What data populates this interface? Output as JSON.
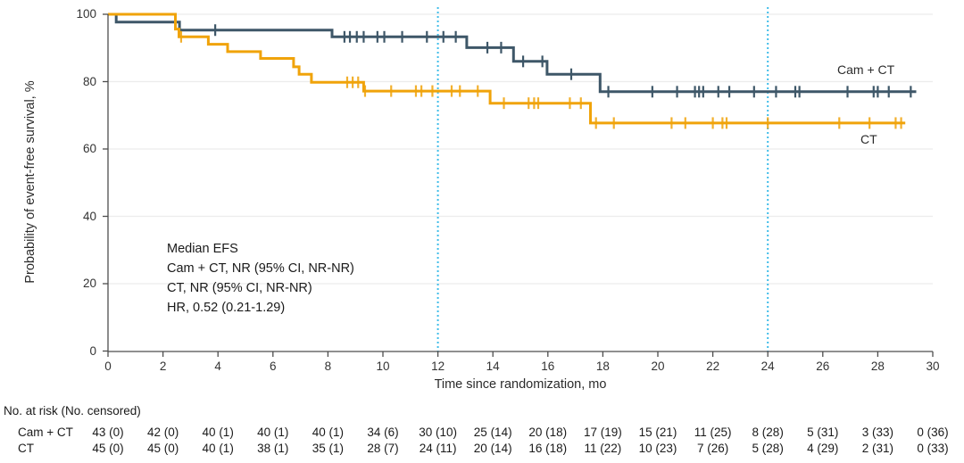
{
  "figure": {
    "yaxis": {
      "title": "Probability of event-free survival, %",
      "ticks": [
        0,
        20,
        40,
        60,
        80,
        100
      ],
      "range": [
        0,
        100
      ]
    },
    "xaxis": {
      "title": "Time since randomization, mo",
      "ticks": [
        0,
        2,
        4,
        6,
        8,
        10,
        12,
        14,
        16,
        18,
        20,
        22,
        24,
        26,
        28,
        30
      ],
      "range": [
        0,
        30
      ]
    },
    "annotation": {
      "lines": [
        "Median EFS",
        "Cam + CT, NR (95% CI, NR-NR)",
        "CT, NR (95% CI, NR-NR)",
        "HR, 0.52 (0.21-1.29)"
      ]
    },
    "reference_lines": {
      "x": [
        12,
        24
      ],
      "color": "#41bde9"
    },
    "colors": {
      "cam_ct": "#3e5768",
      "ct": "#f0a30a",
      "grid": "#ececec",
      "axis": "#4d4d4d"
    }
  },
  "chart_data": {
    "type": "line",
    "subtype": "kaplan-meier-step",
    "title": "",
    "xlabel": "Time since randomization, mo",
    "ylabel": "Probability of event-free survival, %",
    "xlim": [
      0,
      30
    ],
    "ylim": [
      0,
      100
    ],
    "grid": "horizontal",
    "legend_position": "right-inline",
    "series": [
      {
        "name": "Cam + CT",
        "color": "#3e5768",
        "censor_opacity": 1,
        "steps": [
          [
            0,
            100
          ],
          [
            0.3,
            100
          ],
          [
            0.3,
            97.7
          ],
          [
            2.6,
            97.7
          ],
          [
            2.6,
            95.3
          ],
          [
            8.15,
            95.3
          ],
          [
            8.15,
            93.3
          ],
          [
            13.05,
            93.3
          ],
          [
            13.05,
            90.1
          ],
          [
            14.75,
            90.1
          ],
          [
            14.75,
            86.0
          ],
          [
            15.97,
            86.0
          ],
          [
            15.97,
            82.2
          ],
          [
            17.9,
            82.2
          ],
          [
            17.9,
            77.0
          ],
          [
            29.4,
            77.0
          ]
        ],
        "censors": [
          [
            3.9,
            95.3
          ],
          [
            8.6,
            93.3
          ],
          [
            8.8,
            93.3
          ],
          [
            9.05,
            93.3
          ],
          [
            9.3,
            93.3
          ],
          [
            9.8,
            93.3
          ],
          [
            10.05,
            93.3
          ],
          [
            10.7,
            93.3
          ],
          [
            11.6,
            93.3
          ],
          [
            12.2,
            93.3
          ],
          [
            12.65,
            93.3
          ],
          [
            13.8,
            90.1
          ],
          [
            14.3,
            90.1
          ],
          [
            15.1,
            86.0
          ],
          [
            15.8,
            86.0
          ],
          [
            16.85,
            82.2
          ],
          [
            18.2,
            77.0
          ],
          [
            19.8,
            77.0
          ],
          [
            20.7,
            77.0
          ],
          [
            21.35,
            77.0
          ],
          [
            21.5,
            77.0
          ],
          [
            21.65,
            77.0
          ],
          [
            22.2,
            77.0
          ],
          [
            22.6,
            77.0
          ],
          [
            23.5,
            77.0
          ],
          [
            24.3,
            77.0
          ],
          [
            25.0,
            77.0
          ],
          [
            25.15,
            77.0
          ],
          [
            26.9,
            77.0
          ],
          [
            27.85,
            77.0
          ],
          [
            28.0,
            77.0
          ],
          [
            28.4,
            77.0
          ],
          [
            29.2,
            77.0
          ]
        ]
      },
      {
        "name": "CT",
        "color": "#f0a30a",
        "censor_opacity": 0.85,
        "steps": [
          [
            0,
            100
          ],
          [
            2.45,
            100
          ],
          [
            2.45,
            95.6
          ],
          [
            2.58,
            95.6
          ],
          [
            2.58,
            93.3
          ],
          [
            3.65,
            93.3
          ],
          [
            3.65,
            91.1
          ],
          [
            4.35,
            91.1
          ],
          [
            4.35,
            88.9
          ],
          [
            5.55,
            88.9
          ],
          [
            5.55,
            86.9
          ],
          [
            6.75,
            86.9
          ],
          [
            6.75,
            84.4
          ],
          [
            6.95,
            84.4
          ],
          [
            6.95,
            82.2
          ],
          [
            7.4,
            82.2
          ],
          [
            7.4,
            79.8
          ],
          [
            9.3,
            79.8
          ],
          [
            9.3,
            77.2
          ],
          [
            13.9,
            77.2
          ],
          [
            13.9,
            73.6
          ],
          [
            17.55,
            73.6
          ],
          [
            17.55,
            67.7
          ],
          [
            29.0,
            67.7
          ]
        ],
        "censors": [
          [
            2.66,
            93.3
          ],
          [
            8.7,
            79.8
          ],
          [
            8.9,
            79.8
          ],
          [
            9.1,
            79.8
          ],
          [
            9.35,
            77.2
          ],
          [
            10.3,
            77.2
          ],
          [
            11.2,
            77.2
          ],
          [
            11.4,
            77.2
          ],
          [
            11.8,
            77.2
          ],
          [
            12.5,
            77.2
          ],
          [
            12.8,
            77.2
          ],
          [
            13.45,
            77.2
          ],
          [
            14.4,
            73.6
          ],
          [
            15.3,
            73.6
          ],
          [
            15.5,
            73.6
          ],
          [
            15.65,
            73.6
          ],
          [
            16.8,
            73.6
          ],
          [
            17.2,
            73.6
          ],
          [
            17.75,
            67.7
          ],
          [
            18.4,
            67.7
          ],
          [
            20.5,
            67.7
          ],
          [
            21.0,
            67.7
          ],
          [
            22.0,
            67.7
          ],
          [
            22.35,
            67.7
          ],
          [
            22.5,
            67.7
          ],
          [
            24.0,
            67.7
          ],
          [
            26.6,
            67.7
          ],
          [
            27.7,
            67.7
          ],
          [
            28.65,
            67.7
          ],
          [
            28.85,
            67.7
          ]
        ]
      }
    ],
    "reference_lines_x": [
      12,
      24
    ]
  },
  "risk_table": {
    "header": "No. at risk (No. censored)",
    "times": [
      0,
      2,
      4,
      6,
      8,
      10,
      12,
      14,
      16,
      18,
      20,
      22,
      24,
      26,
      28,
      30
    ],
    "rows": [
      {
        "label": "Cam + CT",
        "values": [
          "43 (0)",
          "42 (0)",
          "40 (1)",
          "40 (1)",
          "40 (1)",
          "34 (6)",
          "30 (10)",
          "25 (14)",
          "20 (18)",
          "17 (19)",
          "15 (21)",
          "11 (25)",
          "8 (28)",
          "5 (31)",
          "3 (33)",
          "0 (36)"
        ]
      },
      {
        "label": "CT",
        "values": [
          "45 (0)",
          "45 (0)",
          "40 (1)",
          "38 (1)",
          "35 (1)",
          "28 (7)",
          "24 (11)",
          "20 (14)",
          "16 (18)",
          "11 (22)",
          "10 (23)",
          "7 (26)",
          "5 (28)",
          "4 (29)",
          "2 (31)",
          "0 (33)"
        ]
      }
    ]
  }
}
